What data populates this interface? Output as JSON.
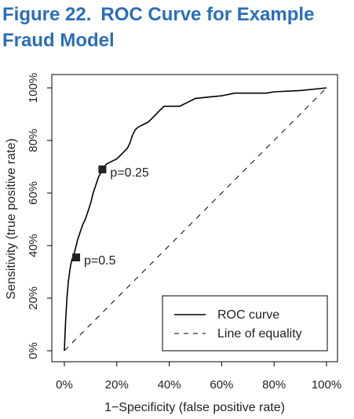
{
  "figure": {
    "number": "Figure 22.",
    "title": "ROC Curve for Example Fraud Model"
  },
  "chart_data": {
    "type": "line",
    "xlabel": "1−Specificity (false positive rate)",
    "ylabel": "Sensitivity (true positive rate)",
    "xlim": [
      0,
      1
    ],
    "ylim": [
      0,
      1
    ],
    "x_ticks": [
      0,
      0.2,
      0.4,
      0.6,
      0.8,
      1.0
    ],
    "x_tick_labels": [
      "0%",
      "20%",
      "40%",
      "60%",
      "80%",
      "100%"
    ],
    "y_ticks": [
      0,
      0.2,
      0.4,
      0.6,
      0.8,
      1.0
    ],
    "y_tick_labels": [
      "0%",
      "20%",
      "40%",
      "60%",
      "80%",
      "100%"
    ],
    "grid": false,
    "legend_position": "bottom-right",
    "series": [
      {
        "name": "ROC curve",
        "style": "solid",
        "color": "#000000",
        "x": [
          0,
          0.005,
          0.01,
          0.015,
          0.02,
          0.025,
          0.03,
          0.035,
          0.04,
          0.05,
          0.06,
          0.07,
          0.08,
          0.09,
          0.1,
          0.11,
          0.12,
          0.13,
          0.14,
          0.15,
          0.16,
          0.18,
          0.2,
          0.22,
          0.24,
          0.25,
          0.26,
          0.27,
          0.28,
          0.3,
          0.32,
          0.34,
          0.36,
          0.38,
          0.4,
          0.44,
          0.48,
          0.5,
          0.55,
          0.6,
          0.65,
          0.7,
          0.77,
          0.8,
          0.9,
          1.0
        ],
        "y": [
          0,
          0.12,
          0.2,
          0.26,
          0.3,
          0.33,
          0.35,
          0.36,
          0.38,
          0.42,
          0.45,
          0.48,
          0.5,
          0.53,
          0.56,
          0.6,
          0.63,
          0.66,
          0.68,
          0.69,
          0.71,
          0.72,
          0.73,
          0.75,
          0.77,
          0.79,
          0.82,
          0.84,
          0.85,
          0.86,
          0.87,
          0.89,
          0.91,
          0.93,
          0.93,
          0.93,
          0.95,
          0.96,
          0.965,
          0.97,
          0.98,
          0.98,
          0.98,
          0.985,
          0.99,
          1.0
        ]
      },
      {
        "name": "Line of equality",
        "style": "dashed",
        "color": "#000000",
        "x": [
          0,
          1
        ],
        "y": [
          0,
          1
        ]
      }
    ],
    "annotations": [
      {
        "label": "p=0.25",
        "x": 0.145,
        "y": 0.69
      },
      {
        "label": "p=0.5",
        "x": 0.045,
        "y": 0.355
      }
    ],
    "legend": [
      {
        "label": "ROC curve",
        "style": "solid"
      },
      {
        "label": "Line of equality",
        "style": "dashed"
      }
    ]
  }
}
